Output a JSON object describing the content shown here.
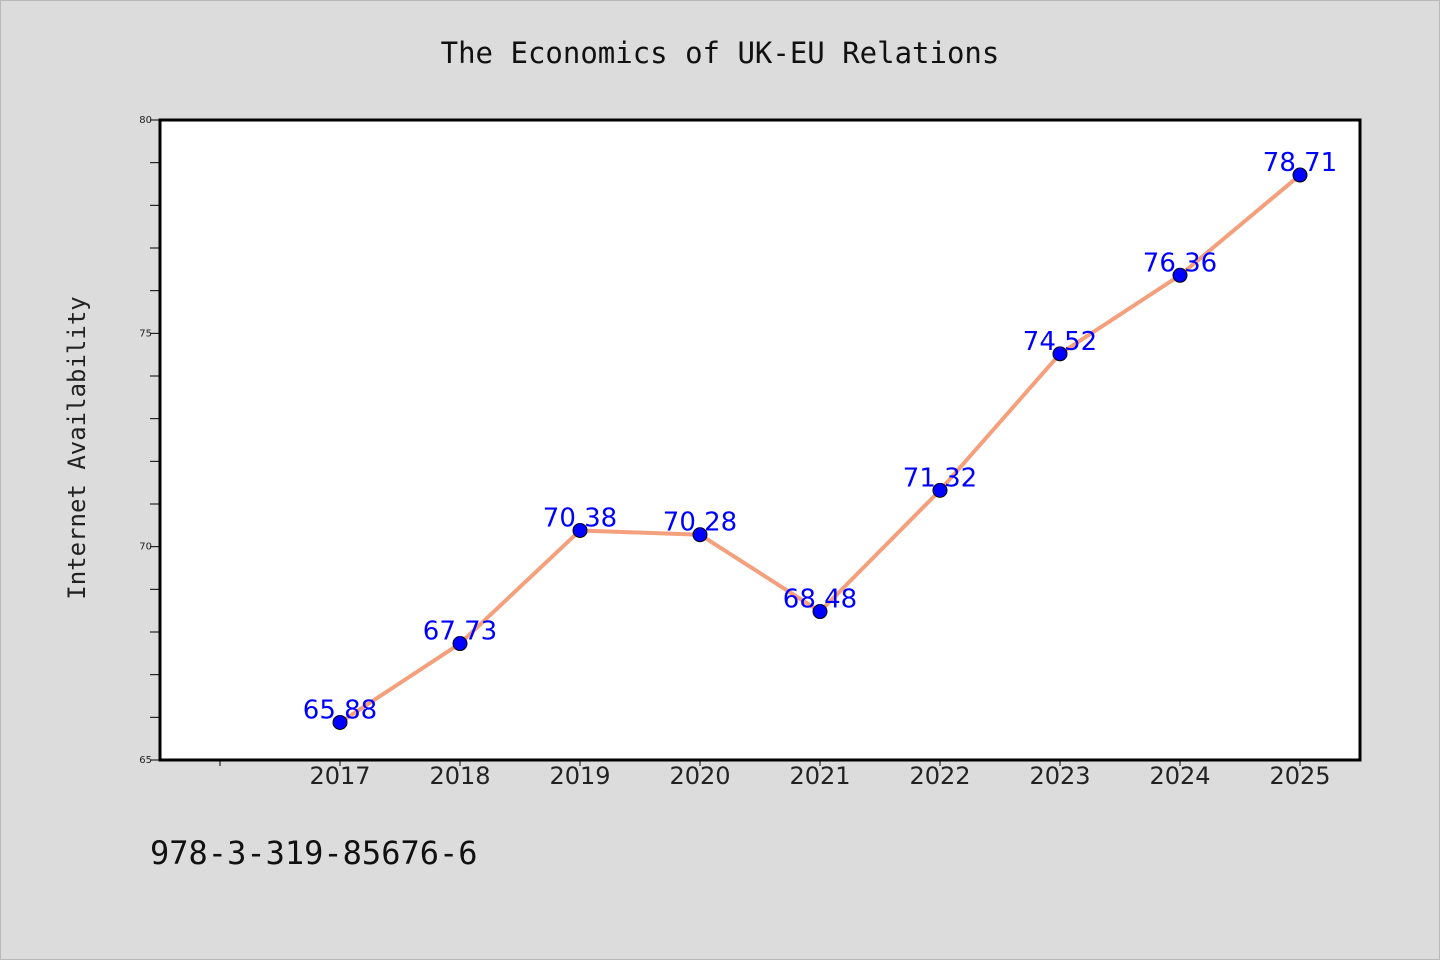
{
  "chart_data": {
    "type": "line",
    "title": "The Economics of UK-EU Relations",
    "xlabel": "",
    "ylabel": "Internet Availability",
    "categories": [
      "2017",
      "2018",
      "2019",
      "2020",
      "2021",
      "2022",
      "2023",
      "2024",
      "2025"
    ],
    "values": [
      65.88,
      67.73,
      70.38,
      70.28,
      68.48,
      71.32,
      74.52,
      76.36,
      78.71
    ],
    "data_labels": [
      "65.88",
      "67.73",
      "70.38",
      "70.28",
      "68.48",
      "71.32",
      "74.52",
      "76.36",
      "78.71"
    ],
    "ylim": [
      65,
      80
    ],
    "yticks": [
      65,
      70,
      75,
      80
    ],
    "yticks_labels": [
      "65",
      "70",
      "75",
      "80"
    ],
    "grid": false,
    "legend": "none",
    "colors": {
      "line": "#f4a07c",
      "marker": "#0000ff",
      "label": "#0000ff",
      "background": "#dcdcdc",
      "plot": "#ffffff"
    }
  },
  "footer": {
    "isbn": "978-3-319-85676-6"
  }
}
